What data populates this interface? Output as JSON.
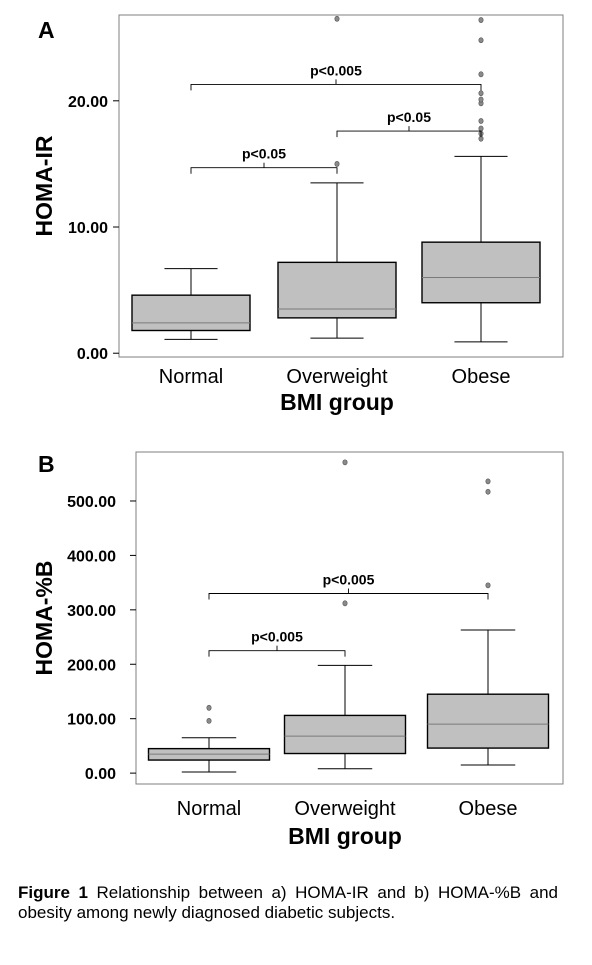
{
  "figure": {
    "caption_label": "Figure 1",
    "caption_text": " Relationship between a) HOMA-IR and b) HOMA-%B and obesity among newly diagnosed diabetic subjects."
  },
  "chart_data": [
    {
      "type": "box",
      "panel": "A",
      "ylabel": "HOMA-IR",
      "xlabel": "BMI group",
      "categories": [
        "Normal",
        "Overweight",
        "Obese"
      ],
      "yticks": [
        0,
        10,
        20
      ],
      "ytick_labels": [
        "0.00",
        "10.00",
        "20.00"
      ],
      "ylim": [
        -0.3,
        26.8
      ],
      "boxes": [
        {
          "category": "Normal",
          "whisker_low": 1.1,
          "q1": 1.8,
          "median": 2.4,
          "q3": 4.6,
          "whisker_high": 6.7,
          "outliers": []
        },
        {
          "category": "Overweight",
          "whisker_low": 1.2,
          "q1": 2.8,
          "median": 3.5,
          "q3": 7.2,
          "whisker_high": 13.5,
          "outliers": [
            15.0,
            26.5
          ]
        },
        {
          "category": "Obese",
          "whisker_low": 0.9,
          "q1": 4.0,
          "median": 6.0,
          "q3": 8.8,
          "whisker_high": 15.6,
          "outliers": [
            17.0,
            17.4,
            17.8,
            18.4,
            19.8,
            20.1,
            20.6,
            22.1,
            24.8,
            26.4
          ]
        }
      ],
      "significance": [
        {
          "from": "Normal",
          "to": "Overweight",
          "label": "p<0.05",
          "y": 14.7
        },
        {
          "from": "Overweight",
          "to": "Obese",
          "label": "p<0.05",
          "y": 17.6
        },
        {
          "from": "Normal",
          "to": "Obese",
          "label": "p<0.005",
          "y": 21.3
        }
      ]
    },
    {
      "type": "box",
      "panel": "B",
      "ylabel": "HOMA-%B",
      "xlabel": "BMI group",
      "categories": [
        "Normal",
        "Overweight",
        "Obese"
      ],
      "yticks": [
        0,
        100,
        200,
        300,
        400,
        500
      ],
      "ytick_labels": [
        "0.00",
        "100.00",
        "200.00",
        "300.00",
        "400.00",
        "500.00"
      ],
      "ylim": [
        -20,
        590
      ],
      "boxes": [
        {
          "category": "Normal",
          "whisker_low": 2,
          "q1": 24,
          "median": 35,
          "q3": 45,
          "whisker_high": 65,
          "outliers": [
            96,
            120
          ]
        },
        {
          "category": "Overweight",
          "whisker_low": 8,
          "q1": 36,
          "median": 68,
          "q3": 106,
          "whisker_high": 198,
          "outliers": [
            312,
            571
          ]
        },
        {
          "category": "Obese",
          "whisker_low": 15,
          "q1": 46,
          "median": 90,
          "q3": 145,
          "whisker_high": 263,
          "outliers": [
            345,
            517,
            536
          ]
        }
      ],
      "significance": [
        {
          "from": "Normal",
          "to": "Overweight",
          "label": "p<0.005",
          "y": 225
        },
        {
          "from": "Normal",
          "to": "Obese",
          "label": "p<0.005",
          "y": 330
        }
      ]
    }
  ]
}
